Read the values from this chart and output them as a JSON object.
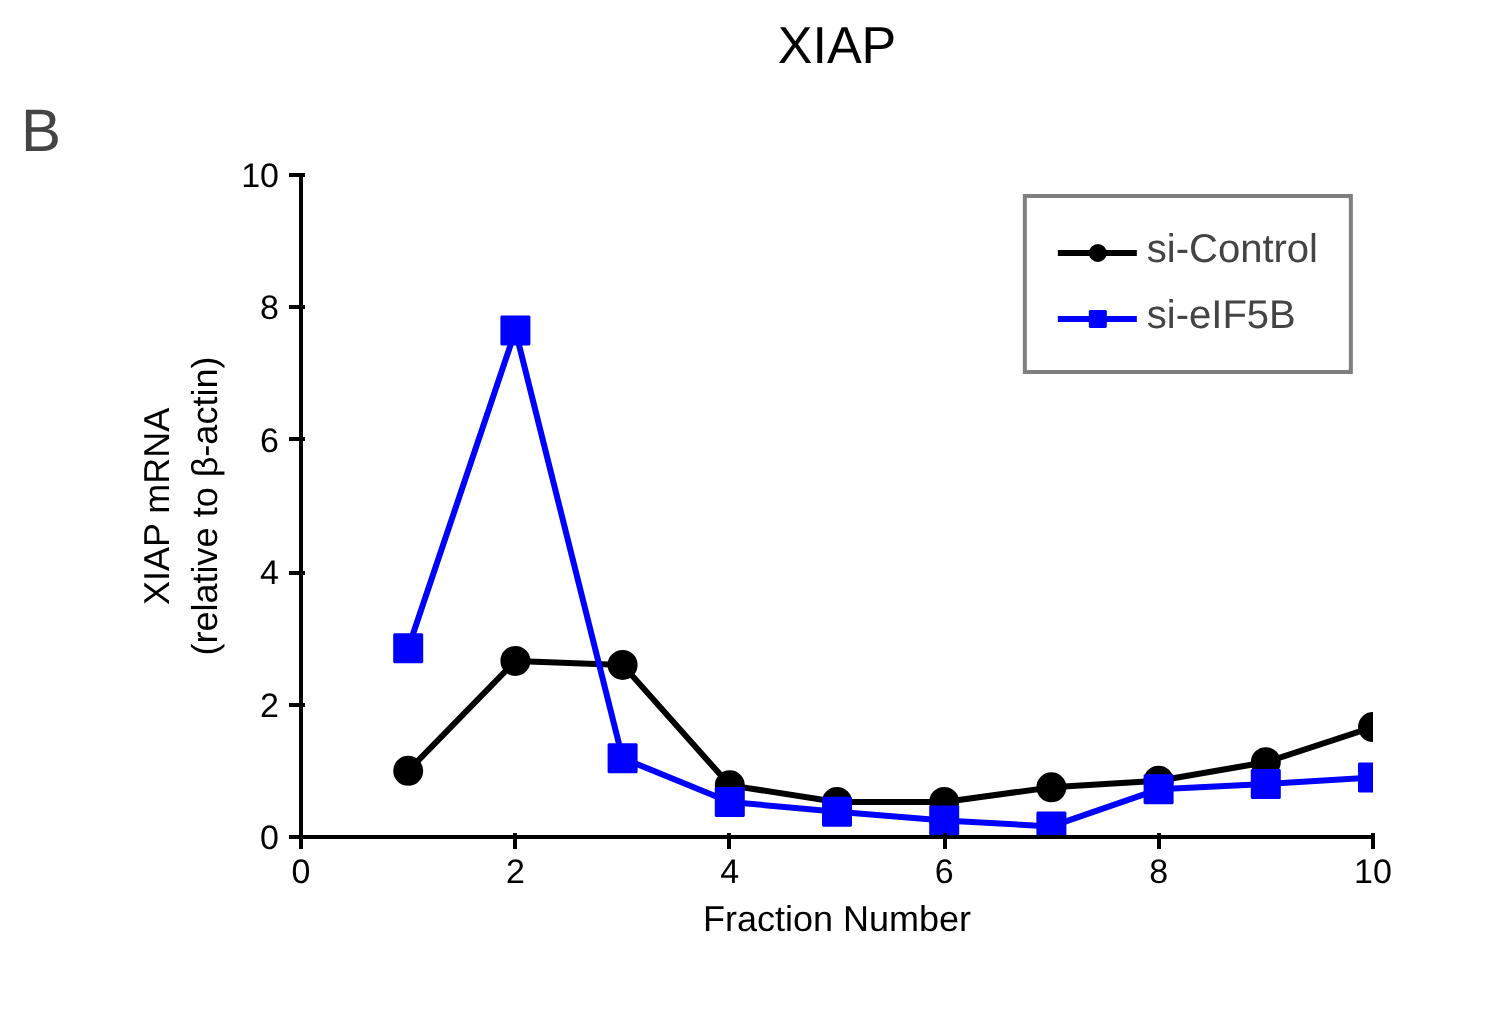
{
  "chart_data": {
    "type": "line",
    "title": "XIAP",
    "xlabel": "Fraction Number",
    "ylabel": "XIAP mRNA\n(relative to β-actin)",
    "annotations": [
      "B"
    ],
    "x": [
      1,
      2,
      3,
      4,
      5,
      6,
      7,
      8,
      9,
      10
    ],
    "series": [
      {
        "name": "si-Control",
        "color": "#000000",
        "marker": "circle",
        "values": [
          1.0,
          2.66,
          2.6,
          0.78,
          0.53,
          0.53,
          0.75,
          0.85,
          1.13,
          1.66
        ]
      },
      {
        "name": "si-eIF5B",
        "color": "#0000ff",
        "marker": "square",
        "values": [
          2.85,
          7.65,
          1.19,
          0.53,
          0.38,
          0.25,
          0.16,
          0.72,
          0.8,
          0.9
        ]
      }
    ],
    "xlim": [
      0,
      10
    ],
    "ylim": [
      0,
      10
    ],
    "xticks": [
      0,
      2,
      4,
      6,
      8,
      10
    ],
    "yticks": [
      0,
      2,
      4,
      6,
      8,
      10
    ],
    "grid": false,
    "legend": "top right",
    "line_style": "solid"
  }
}
